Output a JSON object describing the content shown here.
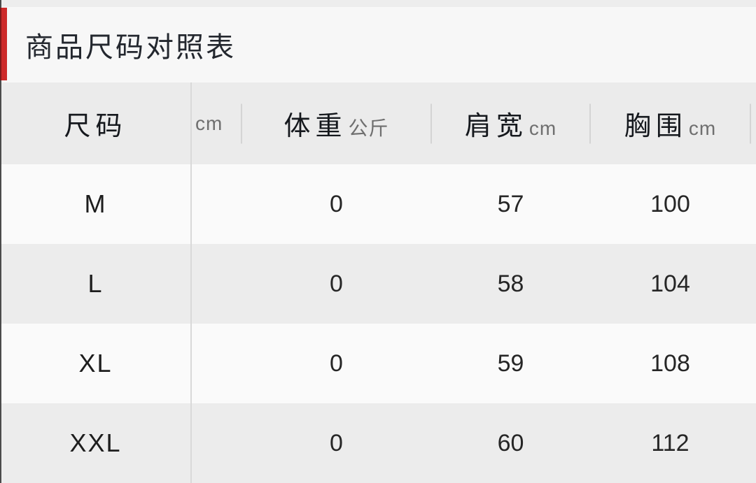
{
  "header": {
    "title": "商品尺码对照表"
  },
  "size_table": {
    "columns": [
      {
        "id": "size",
        "label": "尺码",
        "unit": ""
      },
      {
        "id": "height",
        "label": "",
        "unit": "cm"
      },
      {
        "id": "weight",
        "label": "体重",
        "unit": "公斤"
      },
      {
        "id": "shoulder",
        "label": "肩宽",
        "unit": "cm"
      },
      {
        "id": "chest",
        "label": "胸围",
        "unit": "cm"
      }
    ],
    "rows": [
      {
        "size": "M",
        "height": "",
        "weight": "0",
        "shoulder": "57",
        "chest": "100"
      },
      {
        "size": "L",
        "height": "",
        "weight": "0",
        "shoulder": "58",
        "chest": "104"
      },
      {
        "size": "XL",
        "height": "",
        "weight": "0",
        "shoulder": "59",
        "chest": "108"
      },
      {
        "size": "XXL",
        "height": "",
        "weight": "0",
        "shoulder": "60",
        "chest": "112"
      }
    ]
  },
  "colors": {
    "accent_red": "#cd2929",
    "accent_red_dark": "#7e1a1a",
    "title_bg": "#f7f7f7",
    "header_row_bg": "#ebebeb",
    "row_light_bg": "#fafafa",
    "row_dark_bg": "#ececec"
  }
}
